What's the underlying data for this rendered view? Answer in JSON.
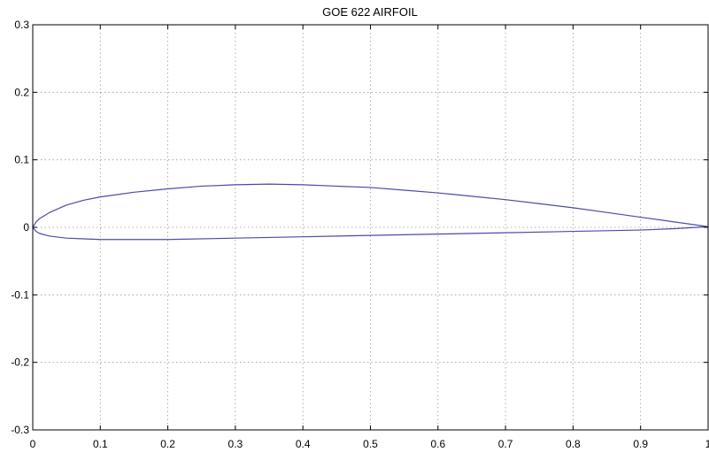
{
  "chart_data": {
    "type": "line",
    "title": "GOE 622 AIRFOIL",
    "xlabel": "",
    "ylabel": "",
    "xlim": [
      0,
      1
    ],
    "ylim": [
      -0.3,
      0.3
    ],
    "grid": true,
    "x_ticks": [
      0,
      0.1,
      0.2,
      0.3,
      0.4,
      0.5,
      0.6,
      0.7,
      0.8,
      0.9,
      1
    ],
    "x_tick_labels": [
      "0",
      "0.1",
      "0.2",
      "0.3",
      "0.4",
      "0.5",
      "0.6",
      "0.7",
      "0.8",
      "0.9",
      "1"
    ],
    "y_ticks": [
      -0.3,
      -0.2,
      -0.1,
      0,
      0.1,
      0.2,
      0.3
    ],
    "y_tick_labels": [
      "-0.3",
      "-0.2",
      "-0.1",
      "0",
      "0.1",
      "0.2",
      "0.3"
    ],
    "line_color": "#4b4ba6",
    "series": [
      {
        "x": [
          0,
          0.005,
          0.01,
          0.025,
          0.05,
          0.075,
          0.1,
          0.15,
          0.2,
          0.25,
          0.3,
          0.35,
          0.4,
          0.45,
          0.5,
          0.55,
          0.6,
          0.65,
          0.7,
          0.75,
          0.8,
          0.85,
          0.9,
          0.95,
          1
        ],
        "y": [
          0,
          0.008,
          0.013,
          0.022,
          0.033,
          0.04,
          0.045,
          0.052,
          0.057,
          0.061,
          0.063,
          0.064,
          0.063,
          0.061,
          0.059,
          0.055,
          0.051,
          0.046,
          0.041,
          0.035,
          0.029,
          0.022,
          0.015,
          0.008,
          0.001
        ]
      },
      {
        "x": [
          0,
          0.005,
          0.01,
          0.025,
          0.05,
          0.075,
          0.1,
          0.15,
          0.2,
          0.3,
          0.4,
          0.5,
          0.6,
          0.7,
          0.8,
          0.9,
          0.95,
          1
        ],
        "y": [
          0,
          -0.006,
          -0.009,
          -0.013,
          -0.016,
          -0.017,
          -0.018,
          -0.018,
          -0.018,
          -0.016,
          -0.014,
          -0.012,
          -0.01,
          -0.008,
          -0.006,
          -0.004,
          -0.002,
          0.001
        ]
      }
    ]
  }
}
